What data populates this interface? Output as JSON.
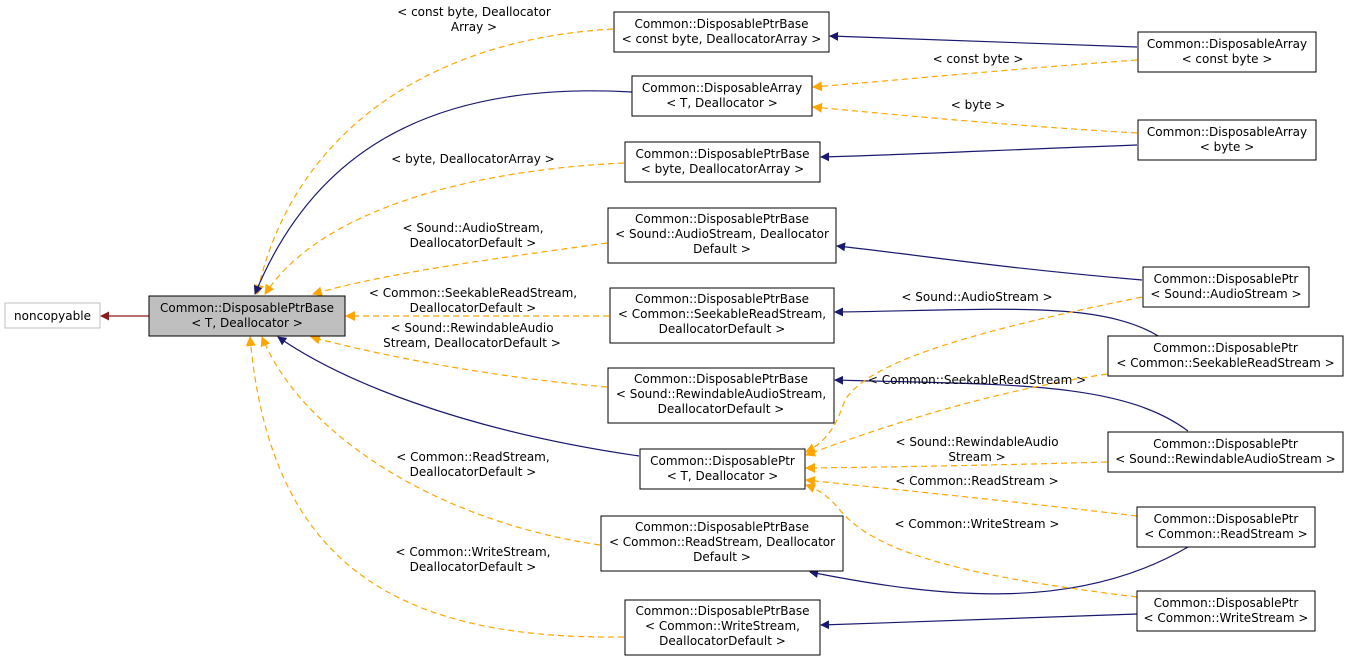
{
  "colors": {
    "inherit_edge": "#191970",
    "template_edge": "#FFA500",
    "base_edge": "#8B1A1A",
    "focus_fill": "#BFBFBF",
    "node_border": "#000000",
    "external_border": "#BFBFBF"
  },
  "nodes": {
    "noncopyable": {
      "lines": [
        "noncopyable"
      ]
    },
    "base_t": {
      "lines": [
        "Common::DisposablePtrBase",
        "< T, Deallocator >"
      ]
    },
    "dpb_const_byte": {
      "lines": [
        "Common::DisposablePtrBase",
        "< const byte, DeallocatorArray >"
      ]
    },
    "da_t": {
      "lines": [
        "Common::DisposableArray",
        "< T, Deallocator >"
      ]
    },
    "dpb_byte": {
      "lines": [
        "Common::DisposablePtrBase",
        "< byte, DeallocatorArray >"
      ]
    },
    "dpb_audio": {
      "lines": [
        "Common::DisposablePtrBase",
        "< Sound::AudioStream, Deallocator",
        "Default >"
      ]
    },
    "dpb_seekable": {
      "lines": [
        "Common::DisposablePtrBase",
        "< Common::SeekableReadStream,",
        "DeallocatorDefault >"
      ]
    },
    "dpb_rewindable": {
      "lines": [
        "Common::DisposablePtrBase",
        "< Sound::RewindableAudioStream,",
        "DeallocatorDefault >"
      ]
    },
    "dp_t": {
      "lines": [
        "Common::DisposablePtr",
        "< T, Deallocator >"
      ]
    },
    "dpb_read": {
      "lines": [
        "Common::DisposablePtrBase",
        "< Common::ReadStream, Deallocator",
        "Default >"
      ]
    },
    "dpb_write": {
      "lines": [
        "Common::DisposablePtrBase",
        "< Common::WriteStream,",
        "DeallocatorDefault >"
      ]
    },
    "da_const_byte": {
      "lines": [
        "Common::DisposableArray",
        "< const byte >"
      ]
    },
    "da_byte": {
      "lines": [
        "Common::DisposableArray",
        "< byte >"
      ]
    },
    "dp_audio": {
      "lines": [
        "Common::DisposablePtr",
        "< Sound::AudioStream >"
      ]
    },
    "dp_seekable": {
      "lines": [
        "Common::DisposablePtr",
        "< Common::SeekableReadStream >"
      ]
    },
    "dp_rewindable": {
      "lines": [
        "Common::DisposablePtr",
        "< Sound::RewindableAudioStream >"
      ]
    },
    "dp_read": {
      "lines": [
        "Common::DisposablePtr",
        "< Common::ReadStream >"
      ]
    },
    "dp_write": {
      "lines": [
        "Common::DisposablePtr",
        "< Common::WriteStream >"
      ]
    }
  },
  "edge_labels": {
    "const_byte_dealloc": [
      "< const byte, Deallocator",
      "Array >"
    ],
    "byte_dealloc": [
      "< byte, DeallocatorArray >"
    ],
    "audio_dealloc": [
      "< Sound::AudioStream,",
      "DeallocatorDefault >"
    ],
    "seekable_dealloc": [
      "< Common::SeekableReadStream,",
      "DeallocatorDefault >"
    ],
    "rewindable_dealloc": [
      "< Sound::RewindableAudio",
      "Stream, DeallocatorDefault >"
    ],
    "read_dealloc": [
      "< Common::ReadStream,",
      "DeallocatorDefault >"
    ],
    "write_dealloc": [
      "< Common::WriteStream,",
      "DeallocatorDefault >"
    ],
    "const_byte": [
      "< const byte >"
    ],
    "byte": [
      "< byte >"
    ],
    "audio": [
      "< Sound::AudioStream >"
    ],
    "seekable": [
      "< Common::SeekableReadStream >"
    ],
    "rewindable": [
      "< Sound::RewindableAudio",
      "Stream >"
    ],
    "read": [
      "< Common::ReadStream >"
    ],
    "write": [
      "< Common::WriteStream >"
    ]
  }
}
